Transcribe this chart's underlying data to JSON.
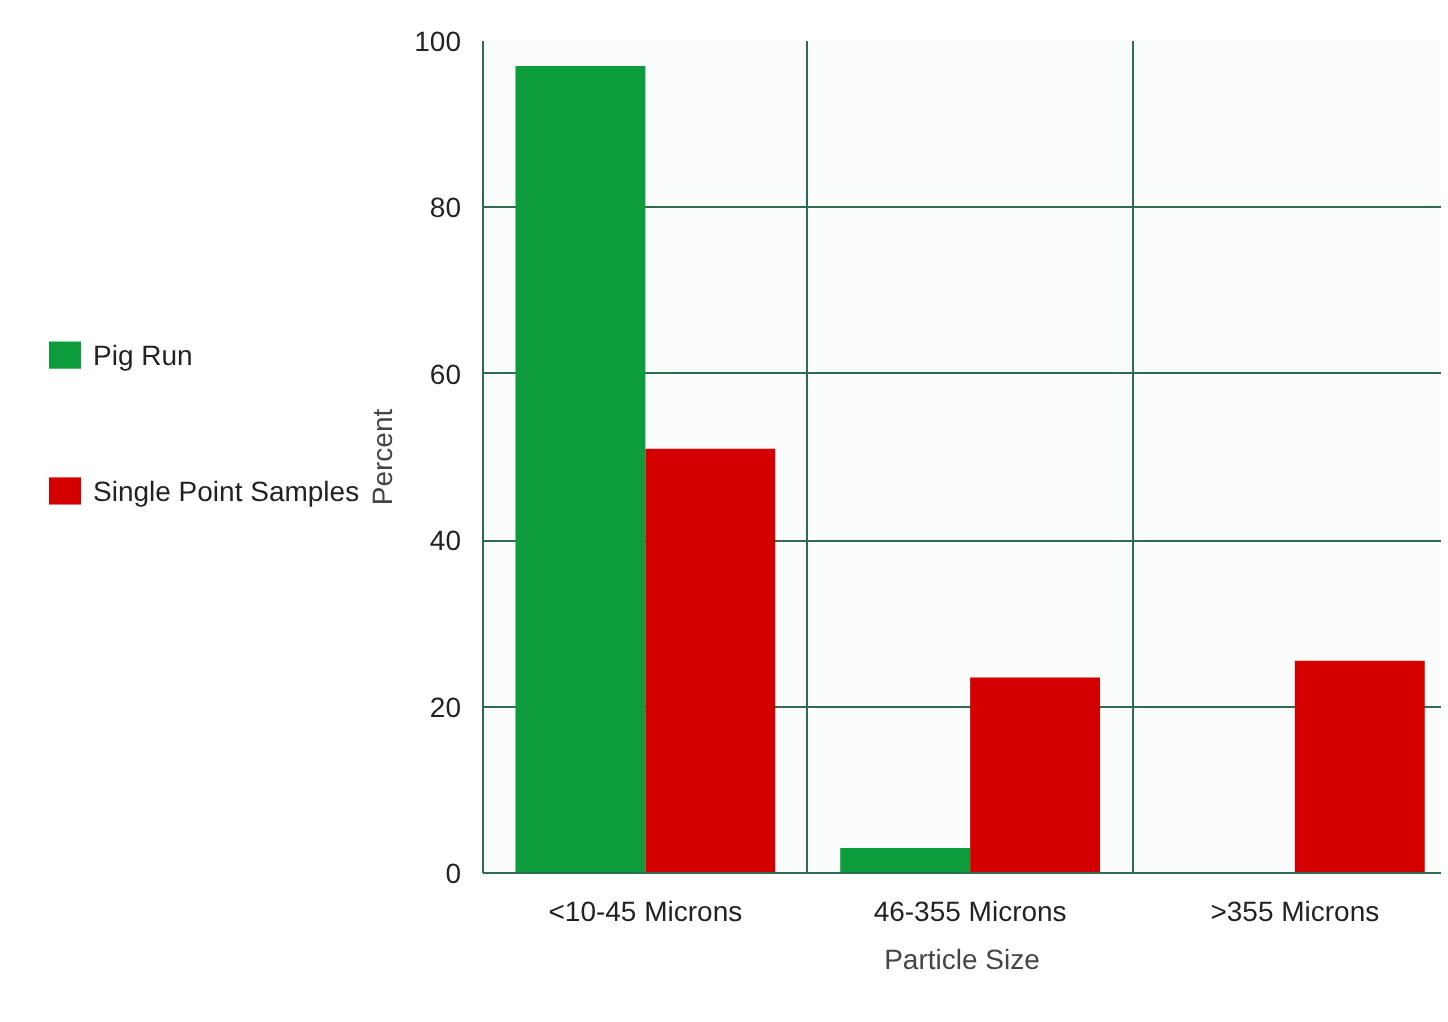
{
  "chart_data": {
    "type": "bar",
    "xlabel": "Particle Size",
    "ylabel": "Percent",
    "categories": [
      "<10-45 Microns",
      "46-355 Microns",
      ">355 Microns"
    ],
    "series": [
      {
        "name": "Pig Run",
        "color": "#0c9c3c",
        "values": [
          97,
          3,
          0
        ]
      },
      {
        "name": "Single Point Samples",
        "color": "#d40000",
        "values": [
          51,
          23.5,
          25.5
        ]
      }
    ],
    "ylim": [
      0,
      100
    ],
    "yticks": [
      0,
      20,
      40,
      60,
      80,
      100
    ],
    "grid": true,
    "legend": "left"
  }
}
